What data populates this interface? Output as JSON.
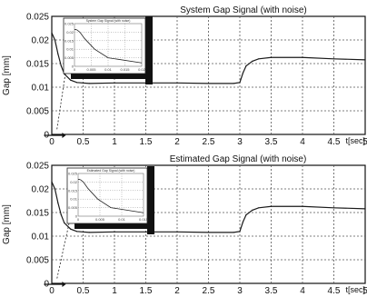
{
  "chart_data": [
    {
      "type": "line",
      "title": "System Gap Signal (with noise)",
      "xlabel": "t[sec]",
      "ylabel": "Gap [mm]",
      "xlim": [
        0,
        5
      ],
      "ylim": [
        0,
        0.025
      ],
      "xtick_labels": [
        "0",
        "0.5",
        "1",
        "1.5",
        "2",
        "2.5",
        "3",
        "3.5",
        "4",
        "4.5",
        "5"
      ],
      "ytick_labels": [
        "0",
        "0.005",
        "0.01",
        "0.015",
        "0.02",
        "0.025"
      ],
      "grid": true,
      "series": [
        {
          "x": [
            0,
            0.05,
            0.1,
            0.15,
            0.2,
            0.3,
            0.4,
            0.6,
            1.0,
            1.5,
            2.0,
            2.5,
            2.9,
            3.0,
            3.05,
            3.1,
            3.2,
            3.3,
            3.5,
            4.0,
            4.5,
            5.0
          ],
          "y": [
            0.0215,
            0.02,
            0.017,
            0.0145,
            0.0128,
            0.0115,
            0.011,
            0.0108,
            0.0109,
            0.0109,
            0.0109,
            0.0108,
            0.0108,
            0.011,
            0.013,
            0.0145,
            0.0155,
            0.016,
            0.0163,
            0.0163,
            0.016,
            0.0158
          ]
        }
      ],
      "inset": {
        "title": "System Gap Signal (with noise)",
        "ytick_labels": [
          "0.025",
          "0.02",
          "0.015",
          "0.01",
          "0.005",
          "0"
        ],
        "xtick_labels": [
          "0",
          "0.005",
          "0.01",
          "0.015",
          "0.02"
        ]
      }
    },
    {
      "type": "line",
      "title": "Estimated Gap Signal (with noise)",
      "xlabel": "t[sec]",
      "ylabel": "Gap [mm]",
      "xlim": [
        0,
        5
      ],
      "ylim": [
        0,
        0.025
      ],
      "xtick_labels": [
        "0",
        "0.5",
        "1",
        "1.5",
        "2",
        "2.5",
        "3",
        "3.5",
        "4",
        "4.5",
        "5"
      ],
      "ytick_labels": [
        "0",
        "0.005",
        "0.01",
        "0.015",
        "0.02",
        "0.025"
      ],
      "grid": true,
      "series": [
        {
          "x": [
            0,
            0.05,
            0.1,
            0.15,
            0.2,
            0.3,
            0.4,
            0.6,
            1.0,
            1.5,
            2.0,
            2.5,
            2.9,
            3.0,
            3.05,
            3.1,
            3.2,
            3.3,
            3.5,
            4.0,
            4.5,
            5.0
          ],
          "y": [
            0.0215,
            0.02,
            0.017,
            0.0145,
            0.0128,
            0.0115,
            0.011,
            0.0108,
            0.0109,
            0.0109,
            0.0109,
            0.0108,
            0.0108,
            0.011,
            0.013,
            0.0145,
            0.0155,
            0.016,
            0.0163,
            0.0163,
            0.016,
            0.0158
          ]
        }
      ],
      "inset": {
        "title": "Estimated Gap Signal (with noise)",
        "ytick_labels": [
          "0.025",
          "0.02",
          "0.015",
          "0.01",
          "0.005",
          "0"
        ],
        "xtick_labels": [
          "0",
          "0.005",
          "0.01",
          "0.015"
        ]
      }
    }
  ]
}
